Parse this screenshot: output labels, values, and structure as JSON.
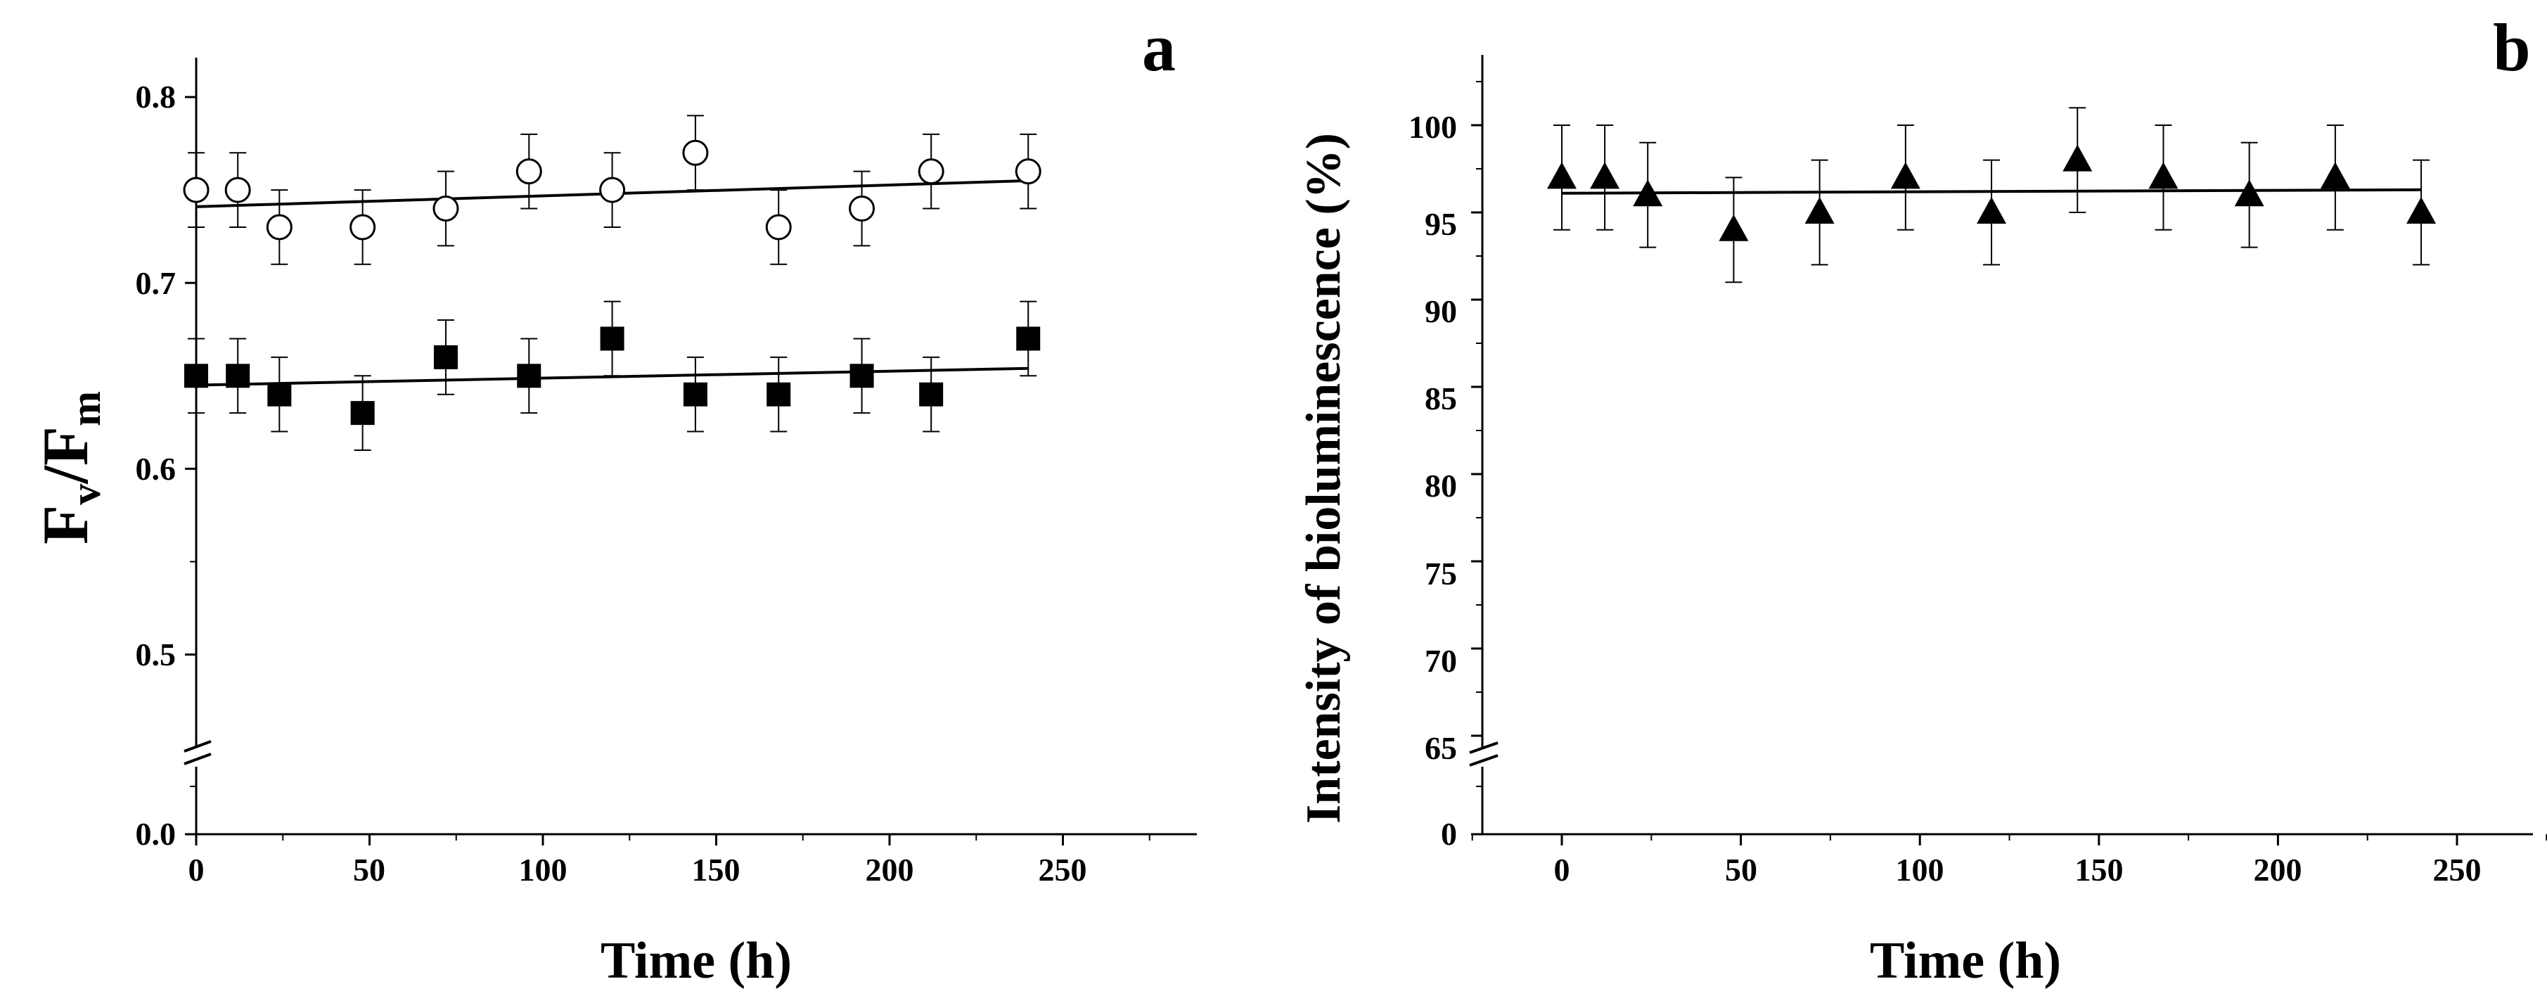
{
  "chart_data": [
    {
      "type": "scatter",
      "panel_label": "a",
      "title": "",
      "xlabel": "Time (h)",
      "ylabel": {
        "base1": "F",
        "sub1": "v",
        "sep": "/",
        "base2": "F",
        "sub2": "m"
      },
      "xlim": [
        0,
        275
      ],
      "xticks": [
        0,
        50,
        100,
        150,
        200,
        250
      ],
      "ylim_upper": [
        0.45,
        0.81
      ],
      "ylim_lower": [
        0.0,
        0.0
      ],
      "yticks": [
        0.0,
        0.5,
        0.6,
        0.7,
        0.8
      ],
      "ytick_labels": [
        "0.0",
        "0.5",
        "0.6",
        "0.7",
        "0.8"
      ],
      "axis_break": true,
      "series": [
        {
          "name": "open circles",
          "marker": "circle-open",
          "x": [
            0,
            12,
            24,
            48,
            72,
            96,
            120,
            144,
            168,
            192,
            212,
            240
          ],
          "y": [
            0.75,
            0.75,
            0.73,
            0.73,
            0.74,
            0.76,
            0.75,
            0.77,
            0.73,
            0.74,
            0.76,
            0.76
          ],
          "err": [
            0.02,
            0.02,
            0.02,
            0.02,
            0.02,
            0.02,
            0.02,
            0.02,
            0.02,
            0.02,
            0.02,
            0.02
          ],
          "fit": {
            "x": [
              0,
              240
            ],
            "y": [
              0.741,
              0.755
            ]
          }
        },
        {
          "name": "filled squares",
          "marker": "square-filled",
          "x": [
            0,
            12,
            24,
            48,
            72,
            96,
            120,
            144,
            168,
            192,
            212,
            240
          ],
          "y": [
            0.65,
            0.65,
            0.64,
            0.63,
            0.66,
            0.65,
            0.67,
            0.64,
            0.64,
            0.65,
            0.64,
            0.67
          ],
          "err": [
            0.02,
            0.02,
            0.02,
            0.02,
            0.02,
            0.02,
            0.02,
            0.02,
            0.02,
            0.02,
            0.02,
            0.02
          ],
          "fit": {
            "x": [
              0,
              240
            ],
            "y": [
              0.645,
              0.654
            ]
          }
        }
      ]
    },
    {
      "type": "scatter",
      "panel_label": "b",
      "title": "",
      "xlabel": "Time (h)",
      "ylabel": "Intensity of bioluminescence (%)",
      "xlim": [
        -30,
        275
      ],
      "xticks": [
        0,
        50,
        100,
        150,
        200,
        250
      ],
      "ylim_upper": [
        64.6,
        104
      ],
      "ylim_lower": [
        0,
        0
      ],
      "yticks": [
        0,
        65,
        70,
        75,
        80,
        85,
        90,
        95,
        100
      ],
      "ytick_labels": [
        "0",
        "65",
        "70",
        "75",
        "80",
        "85",
        "90",
        "95",
        "100"
      ],
      "axis_break": true,
      "series": [
        {
          "name": "filled triangles",
          "marker": "triangle-filled",
          "x": [
            0,
            12,
            24,
            48,
            72,
            96,
            120,
            144,
            168,
            192,
            216,
            240
          ],
          "y": [
            97,
            97,
            96,
            94,
            95,
            97,
            95,
            98,
            97,
            96,
            97,
            95
          ],
          "err": [
            3,
            3,
            3,
            3,
            3,
            3,
            3,
            3,
            3,
            3,
            3,
            3
          ],
          "fit": {
            "x": [
              0,
              240
            ],
            "y": [
              96.1,
              96.3
            ]
          }
        }
      ]
    }
  ]
}
